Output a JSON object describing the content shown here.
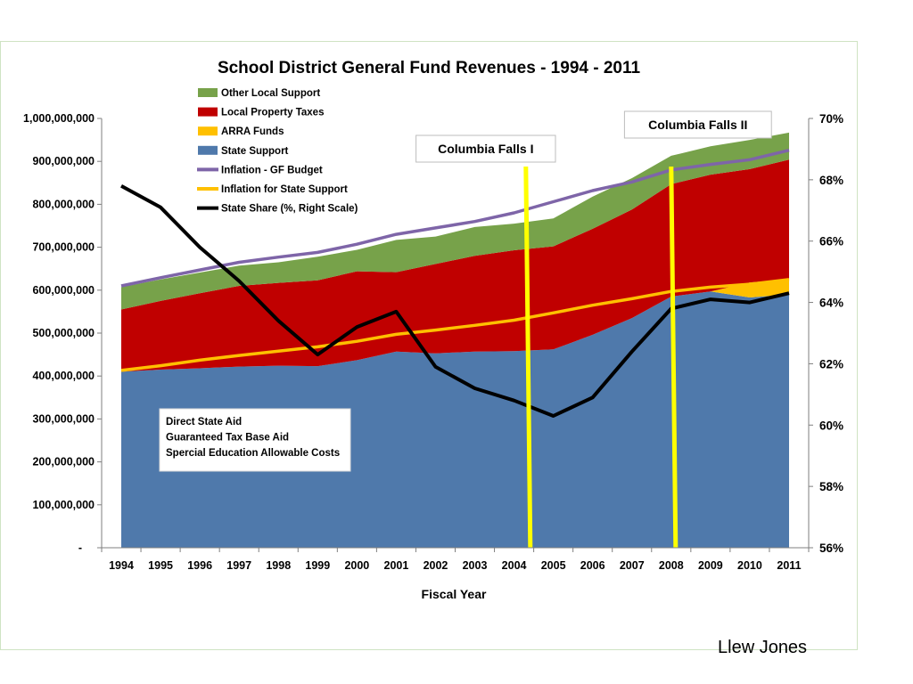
{
  "credit": "Llew Jones",
  "chart_data": {
    "type": "area",
    "title": "School District General Fund Revenues - 1994 - 2011",
    "xlabel": "Fiscal Year",
    "ylabel": "",
    "ylim": [
      0,
      1000000000
    ],
    "y2lim": [
      56,
      70
    ],
    "categories": [
      "1994",
      "1995",
      "1996",
      "1997",
      "1998",
      "1999",
      "2000",
      "2001",
      "2002",
      "2003",
      "2004",
      "2005",
      "2006",
      "2007",
      "2008",
      "2009",
      "2010",
      "2011"
    ],
    "y_ticks": [
      {
        "value": 0,
        "label": "-"
      },
      {
        "value": 100000000,
        "label": "100,000,000"
      },
      {
        "value": 200000000,
        "label": "200,000,000"
      },
      {
        "value": 300000000,
        "label": "300,000,000"
      },
      {
        "value": 400000000,
        "label": "400,000,000"
      },
      {
        "value": 500000000,
        "label": "500,000,000"
      },
      {
        "value": 600000000,
        "label": "600,000,000"
      },
      {
        "value": 700000000,
        "label": "700,000,000"
      },
      {
        "value": 800000000,
        "label": "800,000,000"
      },
      {
        "value": 900000000,
        "label": "900,000,000"
      },
      {
        "value": 1000000000,
        "label": "1,000,000,000"
      }
    ],
    "y2_ticks": [
      {
        "value": 56,
        "label": "56%"
      },
      {
        "value": 58,
        "label": "58%"
      },
      {
        "value": 60,
        "label": "60%"
      },
      {
        "value": 62,
        "label": "62%"
      },
      {
        "value": 64,
        "label": "64%"
      },
      {
        "value": 66,
        "label": "66%"
      },
      {
        "value": 68,
        "label": "68%"
      },
      {
        "value": 70,
        "label": "70%"
      }
    ],
    "stack_series": [
      {
        "name": "State Support",
        "color": "#4f79ab",
        "values": [
          410000000,
          415000000,
          418000000,
          422000000,
          424000000,
          423000000,
          437000000,
          457000000,
          453000000,
          457000000,
          458000000,
          462000000,
          496000000,
          535000000,
          585000000,
          597000000,
          583000000,
          590000000
        ]
      },
      {
        "name": "ARRA Funds",
        "color": "#ffc000",
        "values": [
          0,
          0,
          0,
          0,
          0,
          0,
          0,
          0,
          0,
          0,
          0,
          0,
          0,
          0,
          0,
          0,
          35000000,
          35000000
        ]
      },
      {
        "name": "Local Property Taxes",
        "color": "#c00000",
        "values": [
          145000000,
          160000000,
          175000000,
          188000000,
          193000000,
          200000000,
          207000000,
          185000000,
          208000000,
          223000000,
          235000000,
          240000000,
          247000000,
          253000000,
          262000000,
          272000000,
          264000000,
          279000000
        ]
      },
      {
        "name": "Other Local Support",
        "color": "#77a24a",
        "values": [
          52000000,
          50000000,
          48000000,
          47000000,
          48000000,
          55000000,
          50000000,
          75000000,
          64000000,
          67000000,
          62000000,
          65000000,
          75000000,
          73000000,
          66000000,
          66000000,
          68000000,
          63000000
        ]
      }
    ],
    "line_series": [
      {
        "name": "Inflation - GF Budget",
        "color": "#7e65a8",
        "axis": "left",
        "values": [
          610000000,
          629000000,
          647000000,
          665000000,
          677000000,
          688000000,
          707000000,
          730000000,
          745000000,
          760000000,
          780000000,
          806000000,
          832000000,
          852000000,
          880000000,
          893000000,
          904000000,
          926000000
        ]
      },
      {
        "name": "Inflation for State Support",
        "color": "#ffc000",
        "axis": "left",
        "values": [
          413000000,
          424000000,
          437000000,
          448000000,
          458000000,
          468000000,
          481000000,
          497000000,
          507000000,
          518000000,
          530000000,
          547000000,
          565000000,
          580000000,
          597000000,
          607000000,
          614000000,
          625000000
        ]
      },
      {
        "name": "State Share (%, Right Scale)",
        "color": "#000000",
        "axis": "right",
        "values": [
          67.8,
          67.1,
          65.8,
          64.7,
          63.4,
          62.3,
          63.2,
          63.7,
          61.9,
          61.2,
          60.8,
          60.3,
          60.9,
          62.4,
          63.8,
          64.1,
          64.0,
          64.3
        ]
      }
    ],
    "markers": [
      {
        "label": "Columbia Falls I",
        "x": 2004.3
      },
      {
        "label": "Columbia Falls II",
        "x": 2008.0
      }
    ],
    "annotation": [
      "Direct State Aid",
      "Guaranteed Tax Base Aid",
      "Spercial Education Allowable Costs"
    ],
    "legend_placement": "top-left",
    "grid": false
  }
}
